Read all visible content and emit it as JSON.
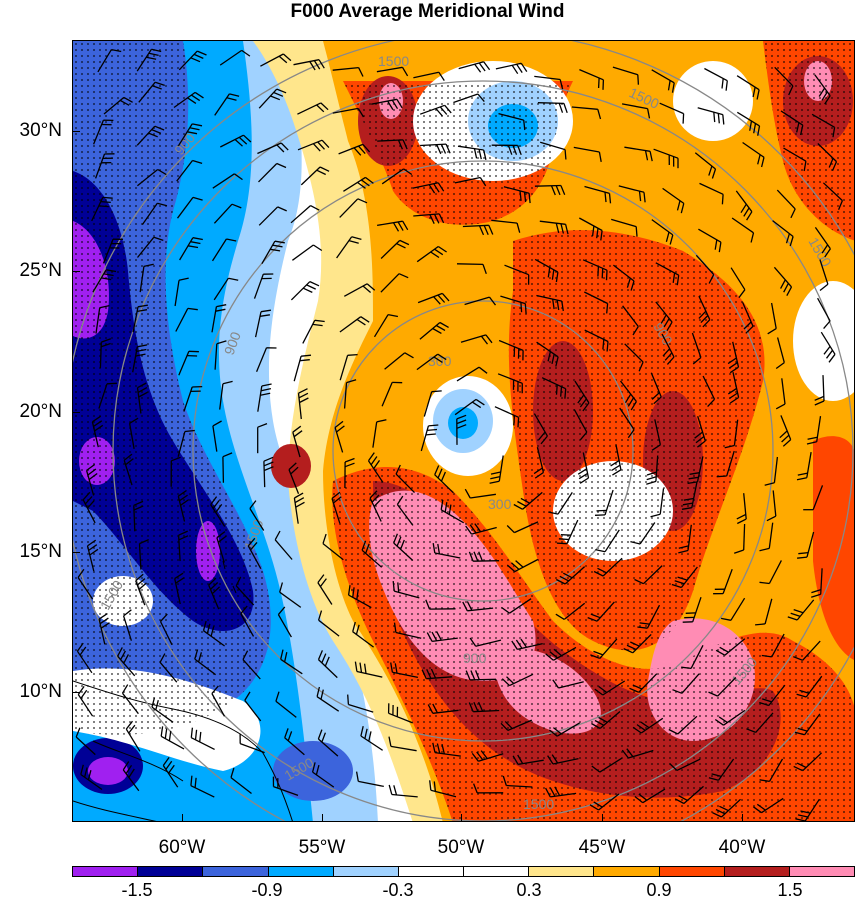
{
  "title": "F000 Average Meridional Wind",
  "map": {
    "lat_labels": [
      "30°N",
      "25°N",
      "20°N",
      "15°N",
      "10°N"
    ],
    "lon_labels": [
      "60°W",
      "55°W",
      "50°W",
      "45°W",
      "40°W"
    ],
    "range_ring_labels": [
      "300",
      "300",
      "900",
      "900",
      "900",
      "900",
      "1500",
      "1500",
      "1500",
      "1500",
      "1500",
      "1500",
      "1500"
    ],
    "stippling": "dots over significant regions",
    "overlays": [
      "wind barbs",
      "range rings",
      "coastlines"
    ]
  },
  "colorbar": {
    "labels": [
      "-1.5",
      "-0.9",
      "-0.3",
      "0.3",
      "0.9",
      "1.5"
    ],
    "colors": [
      "#a020f0",
      "#000096",
      "#3c64dc",
      "#00aaff",
      "#a0d2ff",
      "#ffffff",
      "#ffffff",
      "#ffe68c",
      "#ffaa00",
      "#ff4600",
      "#b41e1e",
      "#ff8cb4"
    ]
  }
}
